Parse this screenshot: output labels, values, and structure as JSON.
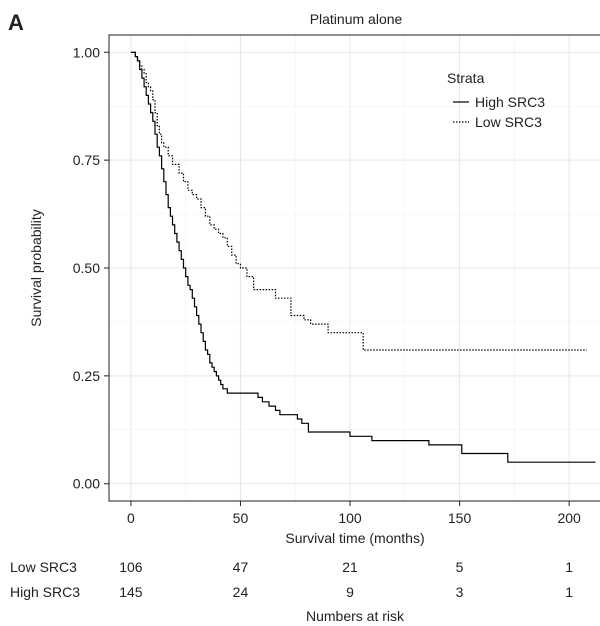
{
  "panel_label": "A",
  "chart_data": {
    "type": "line",
    "title": "Platinum alone",
    "xlabel": "Survival time (months)",
    "ylabel": "Survival probability",
    "xlim": [
      -10,
      215
    ],
    "ylim": [
      -0.04,
      1.04
    ],
    "x_ticks": [
      0,
      50,
      100,
      150,
      200
    ],
    "x_tick_labels": [
      "0",
      "50",
      "100",
      "150",
      "200"
    ],
    "y_ticks": [
      0,
      0.25,
      0.5,
      0.75,
      1.0
    ],
    "y_tick_labels": [
      "0.00",
      "0.25",
      "0.50",
      "0.75",
      "1.00"
    ],
    "grid": true,
    "legend": {
      "title": "Strata",
      "position": "top-right"
    },
    "series": [
      {
        "name": "High SRC3",
        "style": "solid",
        "color": "#000000",
        "x": [
          0,
          2,
          3,
          4,
          5,
          6,
          7,
          8,
          9,
          10,
          11,
          12,
          13,
          14,
          15,
          16,
          17,
          18,
          19,
          20,
          21,
          22,
          23,
          24,
          25,
          26,
          27,
          28,
          29,
          30,
          31,
          32,
          33,
          34,
          35,
          36,
          37,
          38,
          39,
          40,
          41,
          42,
          43,
          44,
          45,
          46,
          56,
          58,
          60,
          63,
          66,
          68,
          71,
          76,
          78,
          81,
          93,
          100,
          103,
          110,
          119,
          130,
          136,
          145,
          151,
          159,
          168,
          172,
          212
        ],
        "y": [
          1.0,
          0.99,
          0.98,
          0.96,
          0.94,
          0.92,
          0.9,
          0.88,
          0.86,
          0.84,
          0.81,
          0.78,
          0.76,
          0.73,
          0.7,
          0.67,
          0.64,
          0.62,
          0.6,
          0.58,
          0.56,
          0.54,
          0.52,
          0.5,
          0.48,
          0.46,
          0.45,
          0.43,
          0.41,
          0.39,
          0.37,
          0.35,
          0.33,
          0.31,
          0.3,
          0.28,
          0.27,
          0.26,
          0.25,
          0.24,
          0.23,
          0.22,
          0.22,
          0.21,
          0.21,
          0.21,
          0.21,
          0.2,
          0.19,
          0.18,
          0.17,
          0.16,
          0.16,
          0.15,
          0.14,
          0.12,
          0.12,
          0.11,
          0.11,
          0.1,
          0.1,
          0.1,
          0.09,
          0.09,
          0.07,
          0.07,
          0.07,
          0.05,
          0.05
        ]
      },
      {
        "name": "Low SRC3",
        "style": "dotted",
        "color": "#000000",
        "x": [
          0,
          2,
          3,
          4,
          5,
          6,
          7,
          8,
          9,
          10,
          11,
          12,
          13,
          14,
          15,
          17,
          19,
          22,
          24,
          26,
          28,
          30,
          32,
          34,
          36,
          38,
          40,
          42,
          44,
          46,
          48,
          50,
          53,
          56,
          60,
          64,
          66,
          68,
          70,
          73,
          76,
          79,
          82,
          86,
          90,
          96,
          100,
          104,
          106,
          150,
          208
        ],
        "y": [
          1.0,
          0.99,
          0.98,
          0.97,
          0.96,
          0.95,
          0.93,
          0.92,
          0.91,
          0.89,
          0.86,
          0.83,
          0.81,
          0.79,
          0.78,
          0.76,
          0.74,
          0.72,
          0.7,
          0.68,
          0.67,
          0.66,
          0.64,
          0.62,
          0.6,
          0.59,
          0.58,
          0.57,
          0.55,
          0.53,
          0.51,
          0.5,
          0.48,
          0.45,
          0.45,
          0.45,
          0.43,
          0.43,
          0.43,
          0.39,
          0.39,
          0.38,
          0.37,
          0.37,
          0.35,
          0.35,
          0.35,
          0.35,
          0.31,
          0.31,
          0.31
        ]
      }
    ],
    "risk_table": {
      "label": "Numbers at risk",
      "times": [
        0,
        50,
        100,
        150,
        200
      ],
      "rows": [
        {
          "name": "Low SRC3",
          "counts": [
            "106",
            "47",
            "21",
            "5",
            "1"
          ]
        },
        {
          "name": "High SRC3",
          "counts": [
            "145",
            "24",
            "9",
            "3",
            "1"
          ]
        }
      ]
    }
  }
}
